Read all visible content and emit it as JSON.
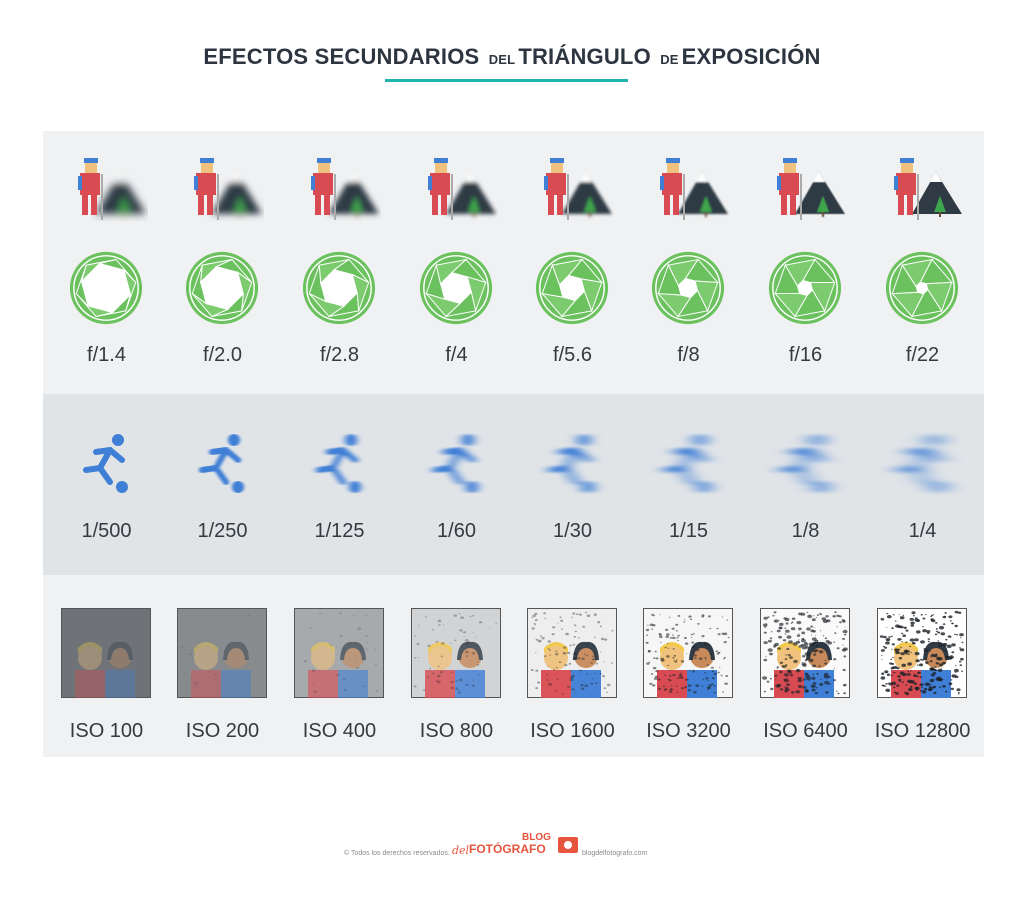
{
  "header": {
    "t1": "EFECTOS SECUNDARIOS",
    "t2": "DEL",
    "t3": "TRIÁNGULO",
    "t4": "DE",
    "t5": "EXPOSICIÓN"
  },
  "apertures": [
    {
      "label": "f/1.4",
      "blur": 4.0,
      "open": 1.0
    },
    {
      "label": "f/2.0",
      "blur": 3.4,
      "open": 0.85
    },
    {
      "label": "f/2.8",
      "blur": 2.8,
      "open": 0.7
    },
    {
      "label": "f/4",
      "blur": 2.2,
      "open": 0.56
    },
    {
      "label": "f/5.6",
      "blur": 1.6,
      "open": 0.42
    },
    {
      "label": "f/8",
      "blur": 1.0,
      "open": 0.28
    },
    {
      "label": "f/16",
      "blur": 0.5,
      "open": 0.18
    },
    {
      "label": "f/22",
      "blur": 0.0,
      "open": 0.1
    }
  ],
  "shutter": [
    {
      "label": "1/500",
      "motion": 0
    },
    {
      "label": "1/250",
      "motion": 1
    },
    {
      "label": "1/125",
      "motion": 2
    },
    {
      "label": "1/60",
      "motion": 3
    },
    {
      "label": "1/30",
      "motion": 4
    },
    {
      "label": "1/15",
      "motion": 5
    },
    {
      "label": "1/8",
      "motion": 6
    },
    {
      "label": "1/4",
      "motion": 7
    }
  ],
  "iso": [
    {
      "label": "ISO 100",
      "level": 0
    },
    {
      "label": "ISO 200",
      "level": 1
    },
    {
      "label": "ISO 400",
      "level": 2
    },
    {
      "label": "ISO 800",
      "level": 3
    },
    {
      "label": "ISO 1600",
      "level": 4
    },
    {
      "label": "ISO 3200",
      "level": 5
    },
    {
      "label": "ISO 6400",
      "level": 6
    },
    {
      "label": "ISO 12800",
      "level": 7
    }
  ],
  "footer": {
    "rights": "© Todos los derechos reservados.",
    "brand_del": "del",
    "brand_blog": "BLOG",
    "brand_name": "FOTÓGRAFO",
    "site": "blogdelfotografo.com"
  },
  "colors": {
    "accent": "#1fb5ad",
    "aperture_green": "#6ac15e",
    "motion_blue": "#3f7fd6",
    "brand_orange": "#e8553e"
  }
}
